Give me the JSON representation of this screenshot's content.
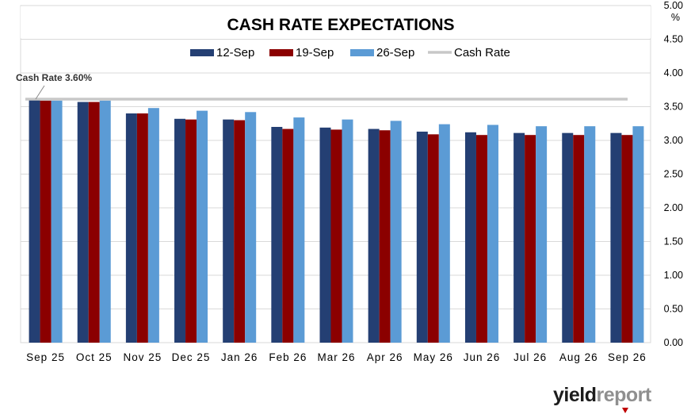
{
  "chart_data": {
    "type": "bar",
    "title": "CASH RATE EXPECTATIONS",
    "categories": [
      "Sep 25",
      "Oct 25",
      "Nov 25",
      "Dec 25",
      "Jan 26",
      "Feb 26",
      "Mar 26",
      "Apr 26",
      "May 26",
      "Jun 26",
      "Jul 26",
      "Aug 26",
      "Sep 26"
    ],
    "series": [
      {
        "name": "12-Sep",
        "color": "#243f73",
        "values": [
          3.6,
          3.57,
          3.4,
          3.32,
          3.31,
          3.2,
          3.19,
          3.17,
          3.13,
          3.12,
          3.11,
          3.11,
          3.11
        ]
      },
      {
        "name": "19-Sep",
        "color": "#8b0000",
        "values": [
          3.59,
          3.57,
          3.4,
          3.31,
          3.3,
          3.17,
          3.16,
          3.15,
          3.09,
          3.08,
          3.08,
          3.08,
          3.08
        ]
      },
      {
        "name": "26-Sep",
        "color": "#5b9bd5",
        "values": [
          3.59,
          3.59,
          3.48,
          3.44,
          3.42,
          3.34,
          3.31,
          3.29,
          3.24,
          3.23,
          3.21,
          3.21,
          3.21
        ]
      }
    ],
    "reference_line": {
      "name": "Cash Rate",
      "value": 3.6,
      "color": "#c8c8c8"
    },
    "annotation": "Cash Rate 3.60%",
    "y_axis": {
      "position": "right",
      "unit": "%",
      "min": 0,
      "max": 5.0,
      "step": 0.5,
      "tick_labels": [
        "0.00",
        "0.50",
        "1.00",
        "1.50",
        "2.00",
        "2.50",
        "3.00",
        "3.50",
        "4.00",
        "4.50",
        "5.00"
      ]
    },
    "grid": true,
    "legend": "top-center"
  },
  "branding": {
    "logo_part1": "yield",
    "logo_part2": "report"
  }
}
